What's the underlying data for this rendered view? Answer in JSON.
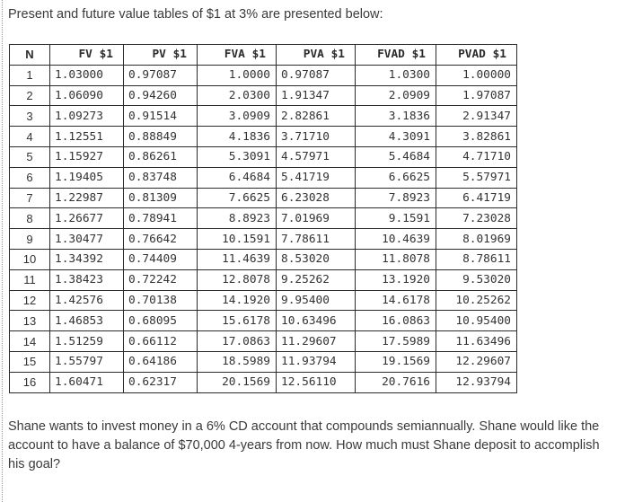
{
  "intro": "Present and future value tables of $1 at 3% are presented below:",
  "table": {
    "headers": [
      "N",
      "FV $1",
      "PV $1",
      "FVA $1",
      "PVA $1",
      "FVAD $1",
      "PVAD $1"
    ],
    "rows": [
      [
        "1",
        "1.03000",
        "0.97087",
        "1.0000",
        "0.97087",
        "1.0300",
        "1.00000"
      ],
      [
        "2",
        "1.06090",
        "0.94260",
        "2.0300",
        "1.91347",
        "2.0909",
        "1.97087"
      ],
      [
        "3",
        "1.09273",
        "0.91514",
        "3.0909",
        "2.82861",
        "3.1836",
        "2.91347"
      ],
      [
        "4",
        "1.12551",
        "0.88849",
        "4.1836",
        "3.71710",
        "4.3091",
        "3.82861"
      ],
      [
        "5",
        "1.15927",
        "0.86261",
        "5.3091",
        "4.57971",
        "5.4684",
        "4.71710"
      ],
      [
        "6",
        "1.19405",
        "0.83748",
        "6.4684",
        "5.41719",
        "6.6625",
        "5.57971"
      ],
      [
        "7",
        "1.22987",
        "0.81309",
        "7.6625",
        "6.23028",
        "7.8923",
        "6.41719"
      ],
      [
        "8",
        "1.26677",
        "0.78941",
        "8.8923",
        "7.01969",
        "9.1591",
        "7.23028"
      ],
      [
        "9",
        "1.30477",
        "0.76642",
        "10.1591",
        "7.78611",
        "10.4639",
        "8.01969"
      ],
      [
        "10",
        "1.34392",
        "0.74409",
        "11.4639",
        "8.53020",
        "11.8078",
        "8.78611"
      ],
      [
        "11",
        "1.38423",
        "0.72242",
        "12.8078",
        "9.25262",
        "13.1920",
        "9.53020"
      ],
      [
        "12",
        "1.42576",
        "0.70138",
        "14.1920",
        "9.95400",
        "14.6178",
        "10.25262"
      ],
      [
        "13",
        "1.46853",
        "0.68095",
        "15.6178",
        "10.63496",
        "16.0863",
        "10.95400"
      ],
      [
        "14",
        "1.51259",
        "0.66112",
        "17.0863",
        "11.29607",
        "17.5989",
        "11.63496"
      ],
      [
        "15",
        "1.55797",
        "0.64186",
        "18.5989",
        "11.93794",
        "19.1569",
        "12.29607"
      ],
      [
        "16",
        "1.60471",
        "0.62317",
        "20.1569",
        "12.56110",
        "20.7616",
        "12.93794"
      ]
    ]
  },
  "question": "Shane wants to invest money in a 6% CD account that compounds semiannually. Shane would like the account to have a balance of $70,000 4-years from now. How much must Shane deposit to accomplish his goal?"
}
